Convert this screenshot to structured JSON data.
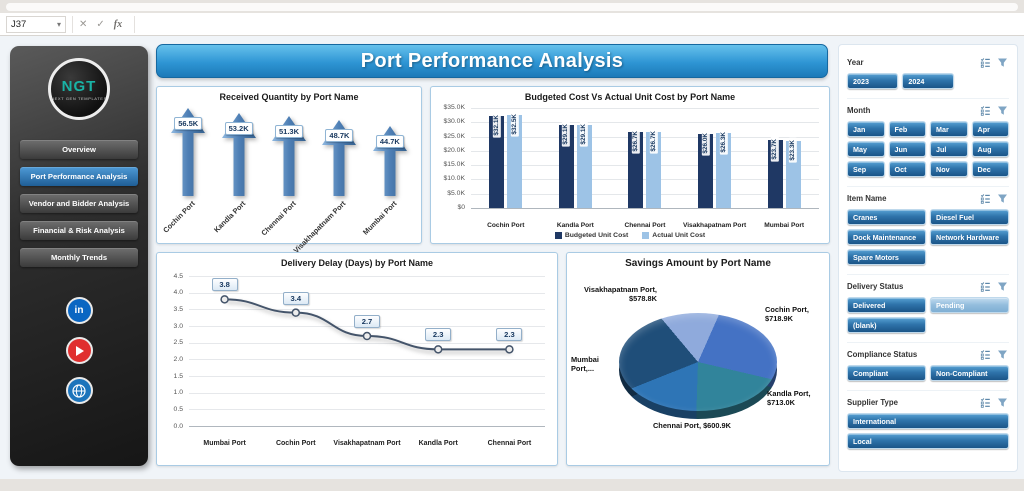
{
  "excel": {
    "name_box": "J37",
    "formula_value": "",
    "icons": {
      "dropdown": "▾",
      "cancel": "✕",
      "check": "✓",
      "fx": "fx"
    }
  },
  "sidebar": {
    "logo_text": "NGT",
    "logo_tagline": "NEXT GEN TEMPLATES",
    "nav": [
      {
        "label": "Overview",
        "active": false
      },
      {
        "label": "Port Performance Analysis",
        "active": true
      },
      {
        "label": "Vendor and Bidder Analysis",
        "active": false
      },
      {
        "label": "Financial & Risk Analysis",
        "active": false
      },
      {
        "label": "Monthly Trends",
        "active": false
      }
    ],
    "social": {
      "linkedin_glyph": "in"
    }
  },
  "header": {
    "title": "Port Performance Analysis"
  },
  "chart_data": [
    {
      "type": "bar",
      "subtype": "arrow-markers",
      "title": "Received Quantity by Port Name",
      "categories": [
        "Cochin Port",
        "Kandla Port",
        "Chennai Port",
        "Visakhapatnam Port",
        "Mumbai Port"
      ],
      "values": [
        56.5,
        53.2,
        51.3,
        48.7,
        44.7
      ],
      "labels": [
        "56.5K",
        "53.2K",
        "51.3K",
        "48.7K",
        "44.7K"
      ],
      "ylim": [
        0,
        60
      ]
    },
    {
      "type": "bar",
      "title": "Budgeted Cost Vs Actual Unit Cost by Port Name",
      "categories": [
        "Cochin Port",
        "Kandla Port",
        "Chennai Port",
        "Visakhapatnam Port",
        "Mumbai Port"
      ],
      "series": [
        {
          "name": "Budgeted Unit Cost",
          "color": "#1F3864",
          "values": [
            32.1,
            29.1,
            26.7,
            26.0,
            23.7
          ],
          "labels": [
            "$32.1K",
            "$29.1K",
            "$26.7K",
            "$26.0K",
            "$23.7K"
          ]
        },
        {
          "name": "Actual Unit Cost",
          "color": "#9DC3E6",
          "values": [
            32.5,
            29.1,
            26.7,
            26.3,
            23.3
          ],
          "labels": [
            "$32.5K",
            "$29.1K",
            "$26.7K",
            "$26.3K",
            "$23.3K"
          ]
        }
      ],
      "ylim": [
        0,
        35
      ],
      "yticks": [
        "$35.0K",
        "$30.0K",
        "$25.0K",
        "$20.0K",
        "$15.0K",
        "$10.0K",
        "$5.0K",
        "$0"
      ],
      "legend_position": "bottom",
      "grid": true
    },
    {
      "type": "line",
      "title": "Delivery Delay (Days) by Port Name",
      "categories": [
        "Mumbai Port",
        "Cochin Port",
        "Visakhapatnam Port",
        "Kandla Port",
        "Chennai Port"
      ],
      "values": [
        3.8,
        3.4,
        2.7,
        2.3,
        2.3
      ],
      "labels": [
        "3.8",
        "3.4",
        "2.7",
        "2.3",
        "2.3"
      ],
      "ylim": [
        0,
        4.5
      ],
      "yticks": [
        "4.5",
        "4.0",
        "3.5",
        "3.0",
        "2.5",
        "2.0",
        "1.5",
        "1.0",
        "0.5",
        "0.0"
      ],
      "grid": true
    },
    {
      "type": "pie",
      "title": "Savings Amount by Port Name",
      "slices": [
        {
          "name": "Visakhapatnam Port",
          "label": "Visakhapatnam Port, $578.8K",
          "value": 578.8,
          "color": "#8FAADC"
        },
        {
          "name": "Cochin Port",
          "label": "Cochin Port, $718.9K",
          "value": 718.9,
          "color": "#4472C4"
        },
        {
          "name": "Kandla Port",
          "label": "Kandla Port, $713.0K",
          "value": 713.0,
          "color": "#31849B"
        },
        {
          "name": "Chennai Port",
          "label": "Chennai Port, $600.9K",
          "value": 600.9,
          "color": "#2E75B6"
        },
        {
          "name": "Mumbai Port",
          "label": "Mumbai Port,...",
          "value": 650,
          "color": "#1F4E79"
        }
      ],
      "start_angle_deg": -40
    }
  ],
  "slicers": [
    {
      "title": "Year",
      "cols": 3,
      "buttons": [
        {
          "label": "2023"
        },
        {
          "label": "2024"
        }
      ]
    },
    {
      "title": "Month",
      "cols": 4,
      "buttons": [
        {
          "label": "Jan"
        },
        {
          "label": "Feb"
        },
        {
          "label": "Mar"
        },
        {
          "label": "Apr"
        },
        {
          "label": "May"
        },
        {
          "label": "Jun"
        },
        {
          "label": "Jul"
        },
        {
          "label": "Aug"
        },
        {
          "label": "Sep"
        },
        {
          "label": "Oct"
        },
        {
          "label": "Nov"
        },
        {
          "label": "Dec"
        }
      ]
    },
    {
      "title": "Item Name",
      "cols": 2,
      "buttons": [
        {
          "label": "Cranes"
        },
        {
          "label": "Diesel Fuel"
        },
        {
          "label": "Dock Maintenance"
        },
        {
          "label": "Network Hardware"
        },
        {
          "label": "Spare Motors"
        }
      ]
    },
    {
      "title": "Delivery Status",
      "cols": 2,
      "buttons": [
        {
          "label": "Delivered"
        },
        {
          "label": "Pending",
          "variant": "light"
        },
        {
          "label": "(blank)"
        }
      ]
    },
    {
      "title": "Compliance Status",
      "cols": 2,
      "buttons": [
        {
          "label": "Compliant"
        },
        {
          "label": "Non-Compliant"
        }
      ]
    },
    {
      "title": "Supplier Type",
      "cols": 1,
      "buttons": [
        {
          "label": "International"
        },
        {
          "label": "Local"
        }
      ]
    }
  ],
  "colors": {
    "banner": "#2287C7",
    "accent": "#2E75B6",
    "budgeted_bar": "#1F3864",
    "actual_bar": "#9DC3E6",
    "line": "#44546A"
  }
}
